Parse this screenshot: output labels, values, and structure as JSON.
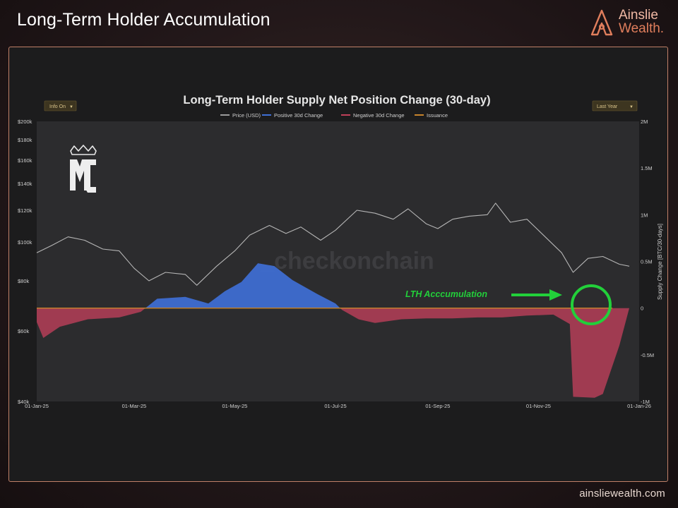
{
  "page": {
    "title": "Long-Term Holder Accumulation",
    "footer_url": "ainsliewealth.com"
  },
  "brand": {
    "line1": "Ainslie",
    "line2": "Wealth.",
    "accent_color": "#e07e5c"
  },
  "controls": {
    "left_button": "Info On",
    "right_button": "Last Year"
  },
  "watermark": {
    "text": "_checkonchain",
    "logo_icon": "mc-crown-logo"
  },
  "annotation": {
    "label": "LTH Acccumulation",
    "color": "#22d03a"
  },
  "chart_data": {
    "type": "area",
    "title": "Long-Term Holder Supply Net Position Change (30-day)",
    "legend": [
      "Price (USD)",
      "Positive 30d Change",
      "Negative 30d Change",
      "Issuance"
    ],
    "legend_colors": [
      "#9b9b9b",
      "#3f6fd6",
      "#c0405a",
      "#c8842c"
    ],
    "legend_position": "top",
    "x_ticks": [
      "01-Jan-25",
      "01-Mar-25",
      "01-May-25",
      "01-Jul-25",
      "01-Sep-25",
      "01-Nov-25",
      "01-Jan-26"
    ],
    "x_range": [
      "2025-01-01",
      "2026-01-01"
    ],
    "y_left": {
      "scale": "log",
      "ticks": [
        "$40k",
        "$60k",
        "$80k",
        "$100k",
        "$120k",
        "$140k",
        "$160k",
        "$180k",
        "$200k"
      ],
      "range": [
        40000,
        200000
      ]
    },
    "y_right": {
      "label": "Supply Change [BTC/30-days]",
      "ticks": [
        "-1M",
        "-0.5M",
        "0",
        "0.5M",
        "1M",
        "1.5M",
        "2M"
      ],
      "range": [
        -1000000,
        2000000
      ]
    },
    "grid": false,
    "price_usd": {
      "x": [
        "2025-01-01",
        "2025-01-10",
        "2025-01-20",
        "2025-01-30",
        "2025-02-10",
        "2025-02-20",
        "2025-03-01",
        "2025-03-10",
        "2025-03-20",
        "2025-04-01",
        "2025-04-08",
        "2025-04-20",
        "2025-05-01",
        "2025-05-10",
        "2025-05-22",
        "2025-06-01",
        "2025-06-10",
        "2025-06-22",
        "2025-07-01",
        "2025-07-14",
        "2025-07-25",
        "2025-08-05",
        "2025-08-14",
        "2025-08-25",
        "2025-09-01",
        "2025-09-10",
        "2025-09-20",
        "2025-10-01",
        "2025-10-06",
        "2025-10-15",
        "2025-10-25",
        "2025-11-04",
        "2025-11-15",
        "2025-11-22",
        "2025-12-01",
        "2025-12-10",
        "2025-12-20",
        "2025-12-26"
      ],
      "y": [
        94000,
        98000,
        103000,
        101000,
        96000,
        95000,
        86000,
        80000,
        84000,
        83000,
        78000,
        87000,
        95000,
        104000,
        110000,
        105000,
        109000,
        101000,
        107000,
        120000,
        118000,
        114000,
        121000,
        111000,
        108000,
        114000,
        116000,
        117000,
        125000,
        112000,
        114000,
        104000,
        94000,
        84000,
        91000,
        92000,
        88000,
        87000
      ]
    },
    "supply_change_30d": {
      "x": [
        "2025-01-01",
        "2025-01-05",
        "2025-01-15",
        "2025-02-01",
        "2025-02-20",
        "2025-03-05",
        "2025-03-15",
        "2025-04-01",
        "2025-04-15",
        "2025-04-25",
        "2025-05-05",
        "2025-05-15",
        "2025-05-25",
        "2025-06-05",
        "2025-06-20",
        "2025-07-01",
        "2025-07-05",
        "2025-07-15",
        "2025-07-25",
        "2025-08-10",
        "2025-08-25",
        "2025-09-10",
        "2025-09-25",
        "2025-10-10",
        "2025-10-25",
        "2025-11-10",
        "2025-11-20",
        "2025-11-22",
        "2025-12-05",
        "2025-12-10",
        "2025-12-20",
        "2025-12-26"
      ],
      "values": [
        -150000,
        -320000,
        -200000,
        -120000,
        -100000,
        -40000,
        100000,
        120000,
        50000,
        180000,
        280000,
        480000,
        450000,
        300000,
        150000,
        50000,
        -20000,
        -120000,
        -160000,
        -120000,
        -110000,
        -110000,
        -100000,
        -100000,
        -80000,
        -70000,
        -170000,
        -950000,
        -960000,
        -920000,
        -400000,
        0
      ]
    },
    "issuance": 0
  }
}
